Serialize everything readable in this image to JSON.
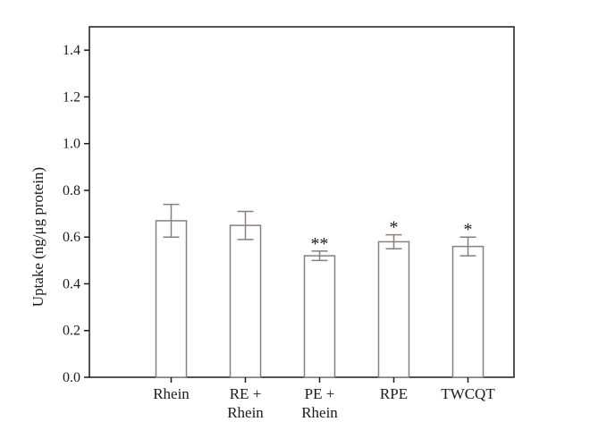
{
  "chart_data": {
    "type": "bar",
    "categories": [
      [
        "Rhein"
      ],
      [
        "RE +",
        "Rhein"
      ],
      [
        "PE +",
        "Rhein"
      ],
      [
        "RPE"
      ],
      [
        "TWCQT"
      ]
    ],
    "values": [
      0.67,
      0.65,
      0.52,
      0.58,
      0.56
    ],
    "error": [
      0.07,
      0.06,
      0.02,
      0.03,
      0.04
    ],
    "annotations": [
      "",
      "",
      "**",
      "*",
      "*"
    ],
    "ylabel": "Uptake (ng/μg protein)",
    "ylim": [
      0.0,
      1.5
    ],
    "yticks": [
      "0.0",
      "0.2",
      "0.4",
      "0.6",
      "0.8",
      "1.0",
      "1.2",
      "1.4"
    ],
    "grid": false,
    "colors": {
      "bar_stroke": "#8a7f7d",
      "bar_fill": "#ffffff",
      "axis": "#1a1a1a"
    }
  }
}
